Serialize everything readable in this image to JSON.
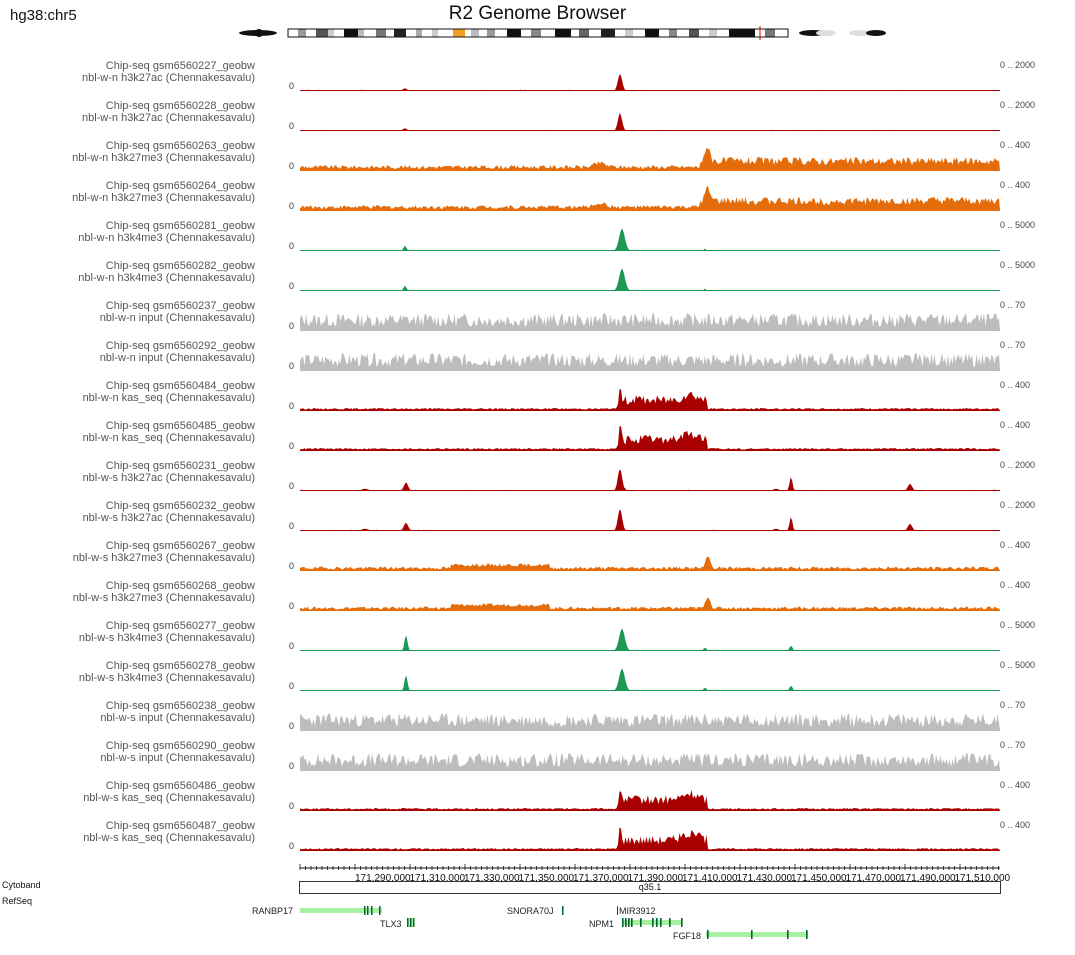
{
  "header": {
    "assembly": "hg38:chr5",
    "title": "R2 Genome Browser"
  },
  "colors": {
    "darkred": "#a80000",
    "orange": "#e46c0a",
    "green": "#1a9a50",
    "gray": "#bdbdbd",
    "gene_green": "#00662f",
    "gene_light": "#a6f0a0",
    "mir_red": "#cc0000"
  },
  "tracks": [
    {
      "line1": "Chip-seq gsm6560227_geobw",
      "line2": "nbl-w-n h3k27ac  (Chennakesavalu)",
      "range": "0 .. 2000",
      "zero": "0",
      "color": "darkred",
      "profile": "k27ac_n"
    },
    {
      "line1": "Chip-seq gsm6560228_geobw",
      "line2": "nbl-w-n h3k27ac  (Chennakesavalu)",
      "range": "0 .. 2000",
      "zero": "0",
      "color": "darkred",
      "profile": "k27ac_n"
    },
    {
      "line1": "Chip-seq gsm6560263_geobw",
      "line2": "nbl-w-n h3k27me3  (Chennakesavalu)",
      "range": "0 .. 400",
      "zero": "0",
      "color": "orange",
      "profile": "k27me3_n"
    },
    {
      "line1": "Chip-seq gsm6560264_geobw",
      "line2": "nbl-w-n h3k27me3  (Chennakesavalu)",
      "range": "0 .. 400",
      "zero": "0",
      "color": "orange",
      "profile": "k27me3_n"
    },
    {
      "line1": "Chip-seq gsm6560281_geobw",
      "line2": "nbl-w-n h3k4me3  (Chennakesavalu)",
      "range": "0 .. 5000",
      "zero": "0",
      "color": "green",
      "profile": "k4me3_n"
    },
    {
      "line1": "Chip-seq gsm6560282_geobw",
      "line2": "nbl-w-n h3k4me3  (Chennakesavalu)",
      "range": "0 .. 5000",
      "zero": "0",
      "color": "green",
      "profile": "k4me3_n"
    },
    {
      "line1": "Chip-seq gsm6560237_geobw",
      "line2": "nbl-w-n input  (Chennakesavalu)",
      "range": "0 .. 70",
      "zero": "0",
      "color": "gray",
      "profile": "input"
    },
    {
      "line1": "Chip-seq gsm6560292_geobw",
      "line2": "nbl-w-n input  (Chennakesavalu)",
      "range": "0 .. 70",
      "zero": "0",
      "color": "gray",
      "profile": "input"
    },
    {
      "line1": "Chip-seq gsm6560484_geobw",
      "line2": "nbl-w-n kas_seq  (Chennakesavalu)",
      "range": "0 .. 400",
      "zero": "0",
      "color": "darkred",
      "profile": "kas"
    },
    {
      "line1": "Chip-seq gsm6560485_geobw",
      "line2": "nbl-w-n kas_seq  (Chennakesavalu)",
      "range": "0 .. 400",
      "zero": "0",
      "color": "darkred",
      "profile": "kas"
    },
    {
      "line1": "Chip-seq gsm6560231_geobw",
      "line2": "nbl-w-s h3k27ac  (Chennakesavalu)",
      "range": "0 .. 2000",
      "zero": "0",
      "color": "darkred",
      "profile": "k27ac_s"
    },
    {
      "line1": "Chip-seq gsm6560232_geobw",
      "line2": "nbl-w-s h3k27ac  (Chennakesavalu)",
      "range": "0 .. 2000",
      "zero": "0",
      "color": "darkred",
      "profile": "k27ac_s"
    },
    {
      "line1": "Chip-seq gsm6560267_geobw",
      "line2": "nbl-w-s h3k27me3  (Chennakesavalu)",
      "range": "0 .. 400",
      "zero": "0",
      "color": "orange",
      "profile": "k27me3_s"
    },
    {
      "line1": "Chip-seq gsm6560268_geobw",
      "line2": "nbl-w-s h3k27me3  (Chennakesavalu)",
      "range": "0 .. 400",
      "zero": "0",
      "color": "orange",
      "profile": "k27me3_s"
    },
    {
      "line1": "Chip-seq gsm6560277_geobw",
      "line2": "nbl-w-s h3k4me3  (Chennakesavalu)",
      "range": "0 .. 5000",
      "zero": "0",
      "color": "green",
      "profile": "k4me3_s"
    },
    {
      "line1": "Chip-seq gsm6560278_geobw",
      "line2": "nbl-w-s h3k4me3  (Chennakesavalu)",
      "range": "0 .. 5000",
      "zero": "0",
      "color": "green",
      "profile": "k4me3_s"
    },
    {
      "line1": "Chip-seq gsm6560238_geobw",
      "line2": "nbl-w-s input  (Chennakesavalu)",
      "range": "0 .. 70",
      "zero": "0",
      "color": "gray",
      "profile": "input"
    },
    {
      "line1": "Chip-seq gsm6560290_geobw",
      "line2": "nbl-w-s input  (Chennakesavalu)",
      "range": "0 .. 70",
      "zero": "0",
      "color": "gray",
      "profile": "input"
    },
    {
      "line1": "Chip-seq gsm6560486_geobw",
      "line2": "nbl-w-s kas_seq  (Chennakesavalu)",
      "range": "0 .. 400",
      "zero": "0",
      "color": "darkred",
      "profile": "kas"
    },
    {
      "line1": "Chip-seq gsm6560487_geobw",
      "line2": "nbl-w-s kas_seq  (Chennakesavalu)",
      "range": "0 .. 400",
      "zero": "0",
      "color": "darkred",
      "profile": "kas"
    }
  ],
  "ruler": {
    "tick_labels": [
      "171,290,000",
      "171,310,000",
      "171,330,000",
      "171,350,000",
      "171,370,000",
      "171,390,000",
      "171,410,000",
      "171,430,000",
      "171,450,000",
      "171,470,000",
      "171,490,000",
      "171,510,000"
    ]
  },
  "annotations": {
    "cytoband_label": "Cytoband",
    "refseq_label": "RefSeq",
    "band": "q35.1"
  },
  "genes": [
    {
      "name": "RANBP17",
      "color": "gene_green"
    },
    {
      "name": "TLX3",
      "color": "gene_green"
    },
    {
      "name": "SNORA70J",
      "color": "gene_green"
    },
    {
      "name": "MIR3912",
      "color": "mir_red"
    },
    {
      "name": "NPM1",
      "color": "gene_green"
    },
    {
      "name": "FGF18",
      "color": "gene_green"
    }
  ]
}
